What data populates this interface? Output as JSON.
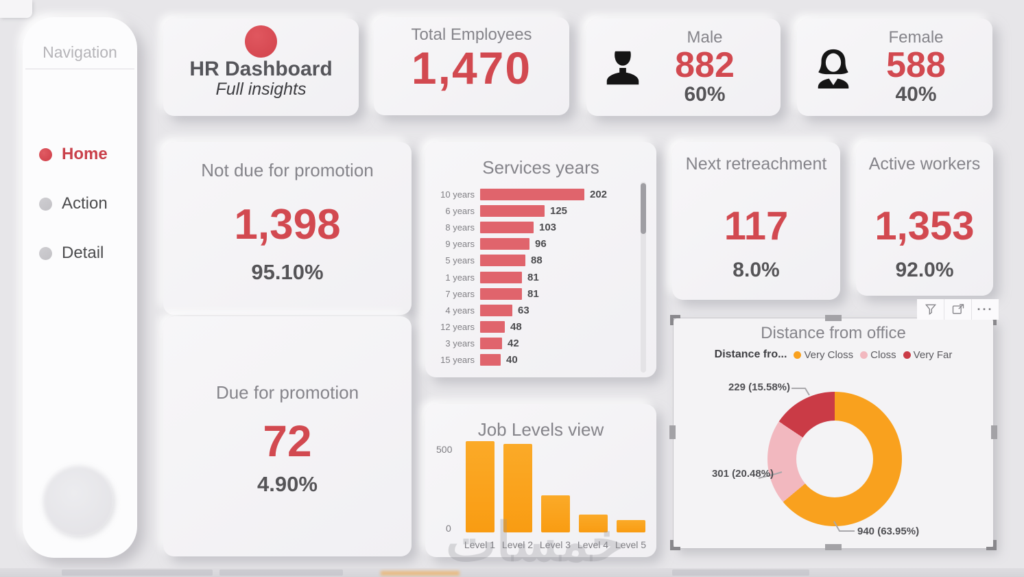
{
  "nav": {
    "title": "Navigation",
    "items": [
      {
        "label": "Home",
        "active": true
      },
      {
        "label": "Action",
        "active": false
      },
      {
        "label": "Detail",
        "active": false
      }
    ]
  },
  "header": {
    "title": "HR Dashboard",
    "subtitle": "Full insights"
  },
  "kpis": {
    "total": {
      "label": "Total Employees",
      "value": "1,470"
    },
    "male": {
      "label": "Male",
      "value": "882",
      "pct": "60%"
    },
    "female": {
      "label": "Female",
      "value": "588",
      "pct": "40%"
    },
    "not_due": {
      "label": "Not due for promotion",
      "value": "1,398",
      "pct": "95.10%"
    },
    "due": {
      "label": "Due for promotion",
      "value": "72",
      "pct": "4.90%"
    },
    "retreach": {
      "label": "Next retreachment",
      "value": "117",
      "pct": "8.0%"
    },
    "active": {
      "label": "Active workers",
      "value": "1,353",
      "pct": "92.0%"
    }
  },
  "accent_colors": {
    "red": "#d24950",
    "bar_red": "#e0646c",
    "orange": "#f9a11e",
    "pink": "#f2b8bf",
    "dark_red": "#ca3b46"
  },
  "chart_data": [
    {
      "type": "bar",
      "title": "Services years",
      "orientation": "horizontal",
      "categories": [
        "10 years",
        "6 years",
        "8 years",
        "9 years",
        "5 years",
        "1 years",
        "7 years",
        "4 years",
        "12 years",
        "3 years",
        "15 years"
      ],
      "values": [
        202,
        125,
        103,
        96,
        88,
        81,
        81,
        63,
        48,
        42,
        40
      ],
      "bar_color": "#e0646c",
      "grid": false,
      "scrollbar": true
    },
    {
      "type": "bar",
      "title": "Job Levels view",
      "orientation": "vertical",
      "categories": [
        "Level 1",
        "Level 2",
        "Level 3",
        "Level 4",
        "Level 5"
      ],
      "values": [
        545,
        530,
        220,
        105,
        75
      ],
      "yticks": [
        "500",
        "0"
      ],
      "ylim": [
        0,
        560
      ],
      "bar_color": "#f9a11e",
      "grid": false
    },
    {
      "type": "pie",
      "title": "Distance from office",
      "legend_title": "Distance fro...",
      "legend_position": "top",
      "slices": [
        {
          "name": "Very Closs",
          "value": 940,
          "pct": 63.95,
          "label": "940 (63.95%)",
          "color": "#f9a11e"
        },
        {
          "name": "Closs",
          "value": 301,
          "pct": 20.48,
          "label": "301 (20.48%)",
          "color": "#f2b8bf"
        },
        {
          "name": "Very Far",
          "value": 229,
          "pct": 15.58,
          "label": "229 (15.58%)",
          "color": "#ca3b46"
        }
      ]
    }
  ],
  "toolbar": {
    "filter": "filter",
    "focus": "focus-mode",
    "more": "more-options"
  },
  "watermark": "خمسات"
}
